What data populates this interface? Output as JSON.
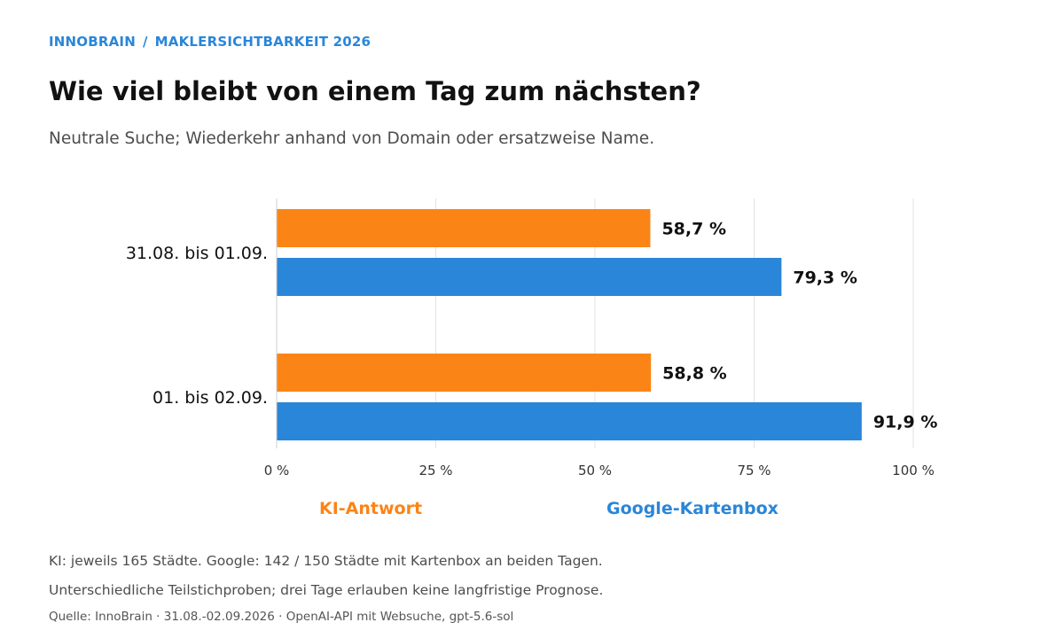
{
  "header": {
    "brand": "INNOBRAIN",
    "separator": "/",
    "section": "MAKLERSICHTBARKEIT 2026",
    "title": "Wie viel bleibt von einem Tag zum nächsten?",
    "subtitle": "Neutrale Suche; Wiederkehr anhand von Domain oder ersatzweise Name."
  },
  "chart_data": {
    "type": "bar",
    "orientation": "horizontal",
    "categories": [
      "31.08. bis 01.09.",
      "01. bis 02.09."
    ],
    "series": [
      {
        "name": "KI-Antwort",
        "values": [
          58.7,
          58.8
        ],
        "labels": [
          "58,7 %",
          "58,8 %"
        ],
        "color": "#fb8417"
      },
      {
        "name": "Google-Kartenbox",
        "values": [
          79.3,
          91.9
        ],
        "labels": [
          "79,3 %",
          "91,9 %"
        ],
        "color": "#2a86d8"
      }
    ],
    "xlim": [
      0,
      100
    ],
    "xticks": [
      0,
      25,
      50,
      75,
      100
    ],
    "xtick_labels": [
      "0 %",
      "25 %",
      "50 %",
      "75 %",
      "100 %"
    ],
    "grid": true,
    "legend_position": "bottom"
  },
  "notes": {
    "line1": "KI: jeweils 165 Städte. Google: 142 / 150 Städte mit Kartenbox an beiden Tagen.",
    "line2": "Unterschiedliche Teilstichproben; drei Tage erlauben keine langfristige Prognose.",
    "source": "Quelle: InnoBrain · 31.08.-02.09.2026 · OpenAI-API mit Websuche, gpt-5.6-sol"
  },
  "colors": {
    "accent_blue": "#2a86d8",
    "accent_orange": "#fb8417",
    "gridline": "#e3e3e3"
  }
}
